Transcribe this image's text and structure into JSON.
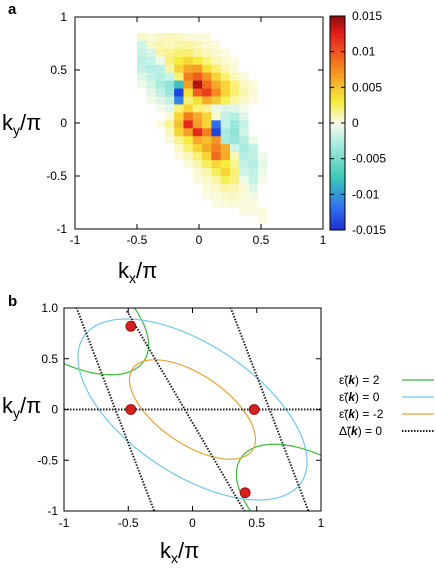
{
  "panels": {
    "a": {
      "label": "a"
    },
    "b": {
      "label": "b"
    }
  },
  "chart_data": [
    {
      "type": "heatmap",
      "panel": "a",
      "xlabel_main": "k",
      "xlabel_sub": "x",
      "xlabel_tail": "/π",
      "ylabel_main": "k",
      "ylabel_sub": "y",
      "ylabel_tail": "/π",
      "xlim": [
        -1,
        1
      ],
      "ylim": [
        -1,
        1
      ],
      "xticks": [
        "-1",
        "-0.5",
        "0",
        "0.5",
        "1"
      ],
      "yticks": [
        "1",
        "0.5",
        "0",
        "-0.5",
        "-1"
      ],
      "colorbar": {
        "range": [
          -0.015,
          0.015
        ],
        "ticks": [
          "0.015",
          "0.01",
          "0.005",
          "0",
          "-0.005",
          "-0.01",
          "-0.015"
        ]
      },
      "grid": {
        "x": [
          -0.4625,
          -0.3875,
          -0.3125,
          -0.2375,
          -0.1625,
          -0.0875,
          -0.0125,
          0.0625,
          0.1375,
          0.2125,
          0.2875,
          0.3625,
          0.4375,
          0.5125
        ],
        "y": [
          0.8875,
          0.8125,
          0.7375,
          0.6625,
          0.5875,
          0.5125,
          0.4375,
          0.3625,
          0.2875,
          0.2125,
          0.1375,
          0.0625,
          -0.0125,
          -0.0875,
          -0.1625,
          -0.2375,
          -0.3125,
          -0.3875,
          -0.4625,
          -0.5375,
          -0.6125,
          -0.6875,
          -0.7625,
          -0.8375,
          -0.9125
        ],
        "values": [
          [
            0,
            0,
            0,
            0,
            0,
            0,
            0,
            0,
            0,
            0,
            0,
            0,
            0,
            0
          ],
          [
            0.0005,
            0.0003,
            0.0006,
            0.0008,
            0.0006,
            0.0003,
            0.0002,
            0.0002,
            0,
            0,
            0,
            0,
            0,
            0
          ],
          [
            -0.0015,
            0.0006,
            0.001,
            0.0008,
            0.001,
            0.0012,
            0.0008,
            0.0004,
            0.0002,
            0,
            0,
            0,
            0,
            0
          ],
          [
            -0.0018,
            -0.0012,
            0.0012,
            0.0016,
            0.002,
            0.002,
            0.0012,
            0.0008,
            0.0004,
            0.0002,
            0,
            0,
            0,
            0
          ],
          [
            -0.0022,
            -0.0018,
            -0.0005,
            0.002,
            0.003,
            0.004,
            0.003,
            0.0018,
            0.0008,
            0.0004,
            0.0002,
            0,
            0,
            0
          ],
          [
            -0.002,
            -0.0025,
            -0.0022,
            0.0012,
            0.004,
            0.006,
            0.0065,
            0.0035,
            0.002,
            0.0008,
            0.0002,
            0,
            0,
            0
          ],
          [
            -0.001,
            -0.002,
            -0.0025,
            -0.0018,
            0.002,
            0.008,
            0.0095,
            0.007,
            0.004,
            0.002,
            0.0008,
            0.0002,
            0,
            0
          ],
          [
            -0.0005,
            -0.0015,
            -0.003,
            -0.004,
            -0.008,
            0.0065,
            0.014,
            0.009,
            0.006,
            0.004,
            0.002,
            0.0008,
            0.0002,
            0
          ],
          [
            0,
            -0.0008,
            -0.002,
            -0.0035,
            -0.014,
            0.0035,
            0.0095,
            0.011,
            0.0075,
            0.004,
            0.002,
            0.001,
            0.0003,
            0
          ],
          [
            0,
            -0.0003,
            -0.001,
            -0.002,
            -0.011,
            0.002,
            0.0035,
            0.006,
            0.0045,
            0.0025,
            0.0012,
            0.0006,
            0.0002,
            0
          ],
          [
            0,
            0,
            -0.0003,
            -0.0008,
            0.002,
            0.004,
            0.002,
            0.0015,
            -0.0005,
            -0.001,
            -0.0008,
            -0.0003,
            0,
            0
          ],
          [
            0,
            0,
            0,
            0.0003,
            0.004,
            0.008,
            0.006,
            0.004,
            0.0005,
            -0.002,
            -0.0025,
            -0.001,
            0,
            0
          ],
          [
            0,
            0,
            0.0002,
            0.0015,
            0.005,
            0.012,
            0.0065,
            0.004,
            -0.012,
            -0.002,
            -0.0035,
            -0.002,
            0,
            0
          ],
          [
            0,
            0,
            0,
            0.0008,
            0.004,
            0.0065,
            0.012,
            0.008,
            -0.014,
            -0.003,
            -0.004,
            -0.0015,
            0,
            0
          ],
          [
            0,
            0,
            0,
            0.0002,
            0.0015,
            0.003,
            0.006,
            0.005,
            0.007,
            -0.003,
            -0.0035,
            -0.0025,
            -0.0005,
            0
          ],
          [
            0,
            0,
            0,
            0,
            0.0006,
            0.002,
            0.004,
            0.006,
            0.008,
            0.006,
            -0.0015,
            -0.003,
            -0.002,
            0
          ],
          [
            0,
            0,
            0,
            0,
            0.0002,
            0.0008,
            0.002,
            0.004,
            0.009,
            0.006,
            0.001,
            -0.0025,
            -0.002,
            -0.0005
          ],
          [
            0,
            0,
            0,
            0,
            0,
            0.0003,
            0.001,
            0.0025,
            0.004,
            0.003,
            0.0015,
            -0.002,
            -0.0025,
            -0.0008
          ],
          [
            0,
            0,
            0,
            0,
            0,
            0,
            0.0004,
            0.001,
            0.0025,
            0.004,
            0.002,
            -0.0015,
            -0.002,
            -0.0005
          ],
          [
            0,
            0,
            0,
            0,
            0,
            0,
            0.0002,
            0.0006,
            0.0012,
            0.0025,
            0.0018,
            -0.0005,
            -0.0018,
            -0.0003
          ],
          [
            0,
            0,
            0,
            0,
            0,
            0,
            0,
            0.0003,
            0.0006,
            0.0012,
            0.001,
            0.0004,
            -0.001,
            0
          ],
          [
            0,
            0,
            0,
            0,
            0,
            0,
            0,
            0.0001,
            0.0003,
            0.0005,
            0.0006,
            0.0003,
            -0.0004,
            0
          ],
          [
            0,
            0,
            0,
            0,
            0,
            0,
            0,
            0,
            0.0001,
            0.0002,
            0.0003,
            0.0002,
            0.0001,
            0
          ],
          [
            0,
            0,
            0,
            0,
            0,
            0,
            0,
            0,
            0,
            0,
            0,
            0.0001,
            0.0001,
            0.0002
          ],
          [
            0,
            0,
            0,
            0,
            0,
            0,
            0,
            0,
            0,
            0,
            0,
            0,
            0,
            0.0002
          ]
        ]
      }
    },
    {
      "type": "line",
      "panel": "b",
      "xlabel_main": "k",
      "xlabel_sub": "x",
      "xlabel_tail": "/π",
      "ylabel_main": "k",
      "ylabel_sub": "y",
      "ylabel_tail": "/π",
      "xlim": [
        -1,
        1
      ],
      "ylim": [
        -1,
        1
      ],
      "xticks": [
        "-1",
        "-0.5",
        "0",
        "0.5",
        "1"
      ],
      "yticks": [
        "1.0",
        "0.5",
        "0",
        "-0.5",
        "-1"
      ],
      "legend_position": "right",
      "legend": [
        {
          "label": "ε̃(k) = 2",
          "main": "ε̃(",
          "bold": "k",
          "tail": ") = 2",
          "color": "#3cb83c",
          "dashed": false
        },
        {
          "label": "ε̃(k) = 0",
          "main": "ε̃(",
          "bold": "k",
          "tail": ") = 0",
          "color": "#74c7ea",
          "dashed": false
        },
        {
          "label": "ε̃(k) = -2",
          "main": "ε̃(",
          "bold": "k",
          "tail": ") = -2",
          "color": "#e8a23a",
          "dashed": false
        },
        {
          "label": "Δ̃(k) = 0",
          "main": "Δ̃(",
          "bold": "k",
          "tail": ") = 0",
          "color": "#222222",
          "dashed": true
        }
      ],
      "contours": [
        {
          "level": 2,
          "color": "#3cb83c",
          "pieces": [
            {
              "cx": -1,
              "cy": 1,
              "theta": -45,
              "a": 0.82,
              "b": 0.44
            },
            {
              "cx": 1,
              "cy": -1,
              "theta": -45,
              "a": 0.82,
              "b": 0.44
            }
          ]
        },
        {
          "level": 0,
          "color": "#74c7ea",
          "pieces": [
            {
              "cx": 0,
              "cy": 0,
              "theta": -45,
              "a": 1.12,
              "b": 0.58
            }
          ]
        },
        {
          "level": -2,
          "color": "#e8a23a",
          "pieces": [
            {
              "cx": 0,
              "cy": 0,
              "theta": -45,
              "a": 0.62,
              "b": 0.31
            }
          ]
        }
      ],
      "dashed_lines": [
        {
          "x1": -1,
          "y1": 0,
          "x2": 1,
          "y2": 0
        },
        {
          "x1": -0.92,
          "y1": 1.06,
          "x2": -0.28,
          "y2": -1.06
        },
        {
          "x1": -0.51,
          "y1": 0.97,
          "x2": 0.45,
          "y2": -1.1
        },
        {
          "x1": 0.28,
          "y1": 1.06,
          "x2": 0.92,
          "y2": -1.06
        }
      ],
      "points": [
        {
          "x": -0.48,
          "y": 0
        },
        {
          "x": 0.48,
          "y": 0
        },
        {
          "x": -0.48,
          "y": 0.82
        },
        {
          "x": 0.41,
          "y": -0.82
        }
      ]
    }
  ]
}
